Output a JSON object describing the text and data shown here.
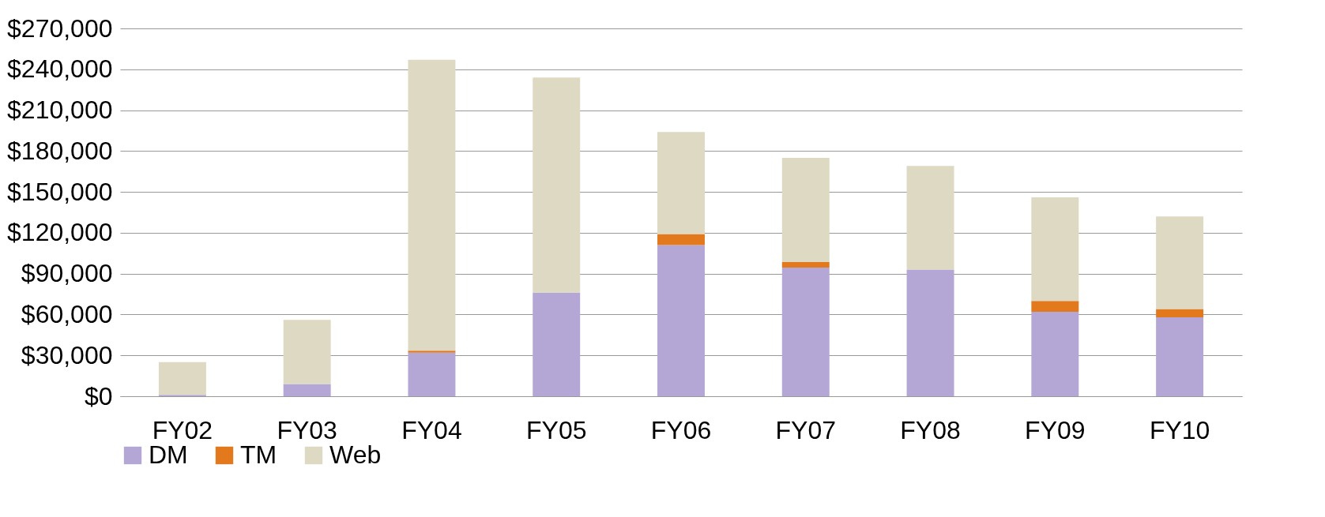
{
  "chart_data": {
    "type": "bar",
    "stacked": true,
    "categories": [
      "FY02",
      "FY03",
      "FY04",
      "FY05",
      "FY06",
      "FY07",
      "FY08",
      "FY09",
      "FY10"
    ],
    "series": [
      {
        "name": "DM",
        "color": "#b4a7d6",
        "values": [
          1000,
          9000,
          32000,
          76000,
          111000,
          94500,
          93000,
          62000,
          58000
        ]
      },
      {
        "name": "TM",
        "color": "#e3791d",
        "values": [
          0,
          0,
          1500,
          0,
          8000,
          4000,
          0,
          8000,
          6000
        ]
      },
      {
        "name": "Web",
        "color": "#ddd9c3",
        "values": [
          24000,
          47000,
          213500,
          158000,
          75000,
          76500,
          76000,
          76000,
          68000
        ]
      }
    ],
    "ylim": [
      0,
      270000
    ],
    "yticks": [
      {
        "value": 0,
        "label": "$0"
      },
      {
        "value": 30000,
        "label": "$30,000"
      },
      {
        "value": 60000,
        "label": "$60,000"
      },
      {
        "value": 90000,
        "label": "$90,000"
      },
      {
        "value": 120000,
        "label": "$120,000"
      },
      {
        "value": 150000,
        "label": "$150,000"
      },
      {
        "value": 180000,
        "label": "$180,000"
      },
      {
        "value": 210000,
        "label": "$210,000"
      },
      {
        "value": 240000,
        "label": "$240,000"
      },
      {
        "value": 270000,
        "label": "$270,000"
      }
    ],
    "grid": "y",
    "legend": "bottom"
  }
}
